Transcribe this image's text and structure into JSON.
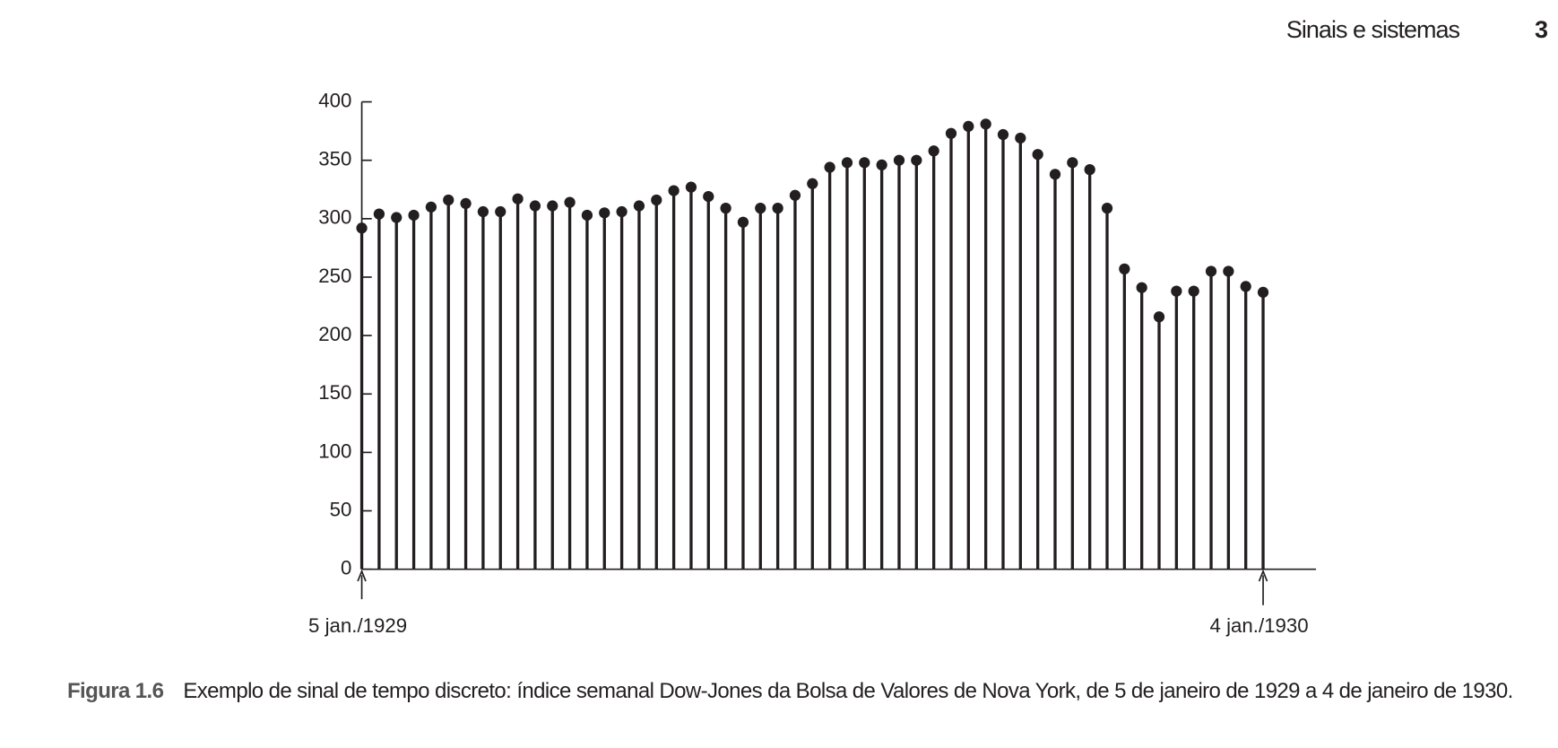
{
  "header": {
    "section": "Sinais e sistemas",
    "page": "3"
  },
  "chart_data": {
    "type": "stem",
    "categories": [
      "5 jan./1929",
      null,
      null,
      null,
      null,
      null,
      null,
      null,
      null,
      null,
      null,
      null,
      null,
      null,
      null,
      null,
      null,
      null,
      null,
      null,
      null,
      null,
      null,
      null,
      null,
      null,
      null,
      null,
      null,
      null,
      null,
      null,
      null,
      null,
      null,
      null,
      null,
      null,
      null,
      null,
      null,
      null,
      null,
      null,
      null,
      null,
      null,
      null,
      null,
      null,
      null,
      null,
      "4 jan./1930"
    ],
    "values": [
      292,
      304,
      301,
      303,
      310,
      316,
      313,
      306,
      306,
      317,
      311,
      311,
      314,
      303,
      305,
      306,
      311,
      316,
      324,
      327,
      319,
      309,
      297,
      309,
      309,
      320,
      330,
      344,
      348,
      348,
      346,
      350,
      350,
      358,
      373,
      379,
      381,
      372,
      369,
      355,
      338,
      348,
      342,
      309,
      257,
      241,
      216,
      238,
      238,
      255,
      255,
      242,
      237
    ],
    "color": "#231f20",
    "ylim": [
      0,
      400
    ],
    "yticks": [
      0,
      50,
      100,
      150,
      200,
      250,
      300,
      350,
      400
    ]
  },
  "caption": {
    "label": "Figura 1.6",
    "text": "Exemplo de sinal de tempo discreto: índice semanal Dow-Jones da Bolsa de Valores de Nova York, de 5 de janeiro de 1929 a 4 de janeiro de 1930."
  }
}
